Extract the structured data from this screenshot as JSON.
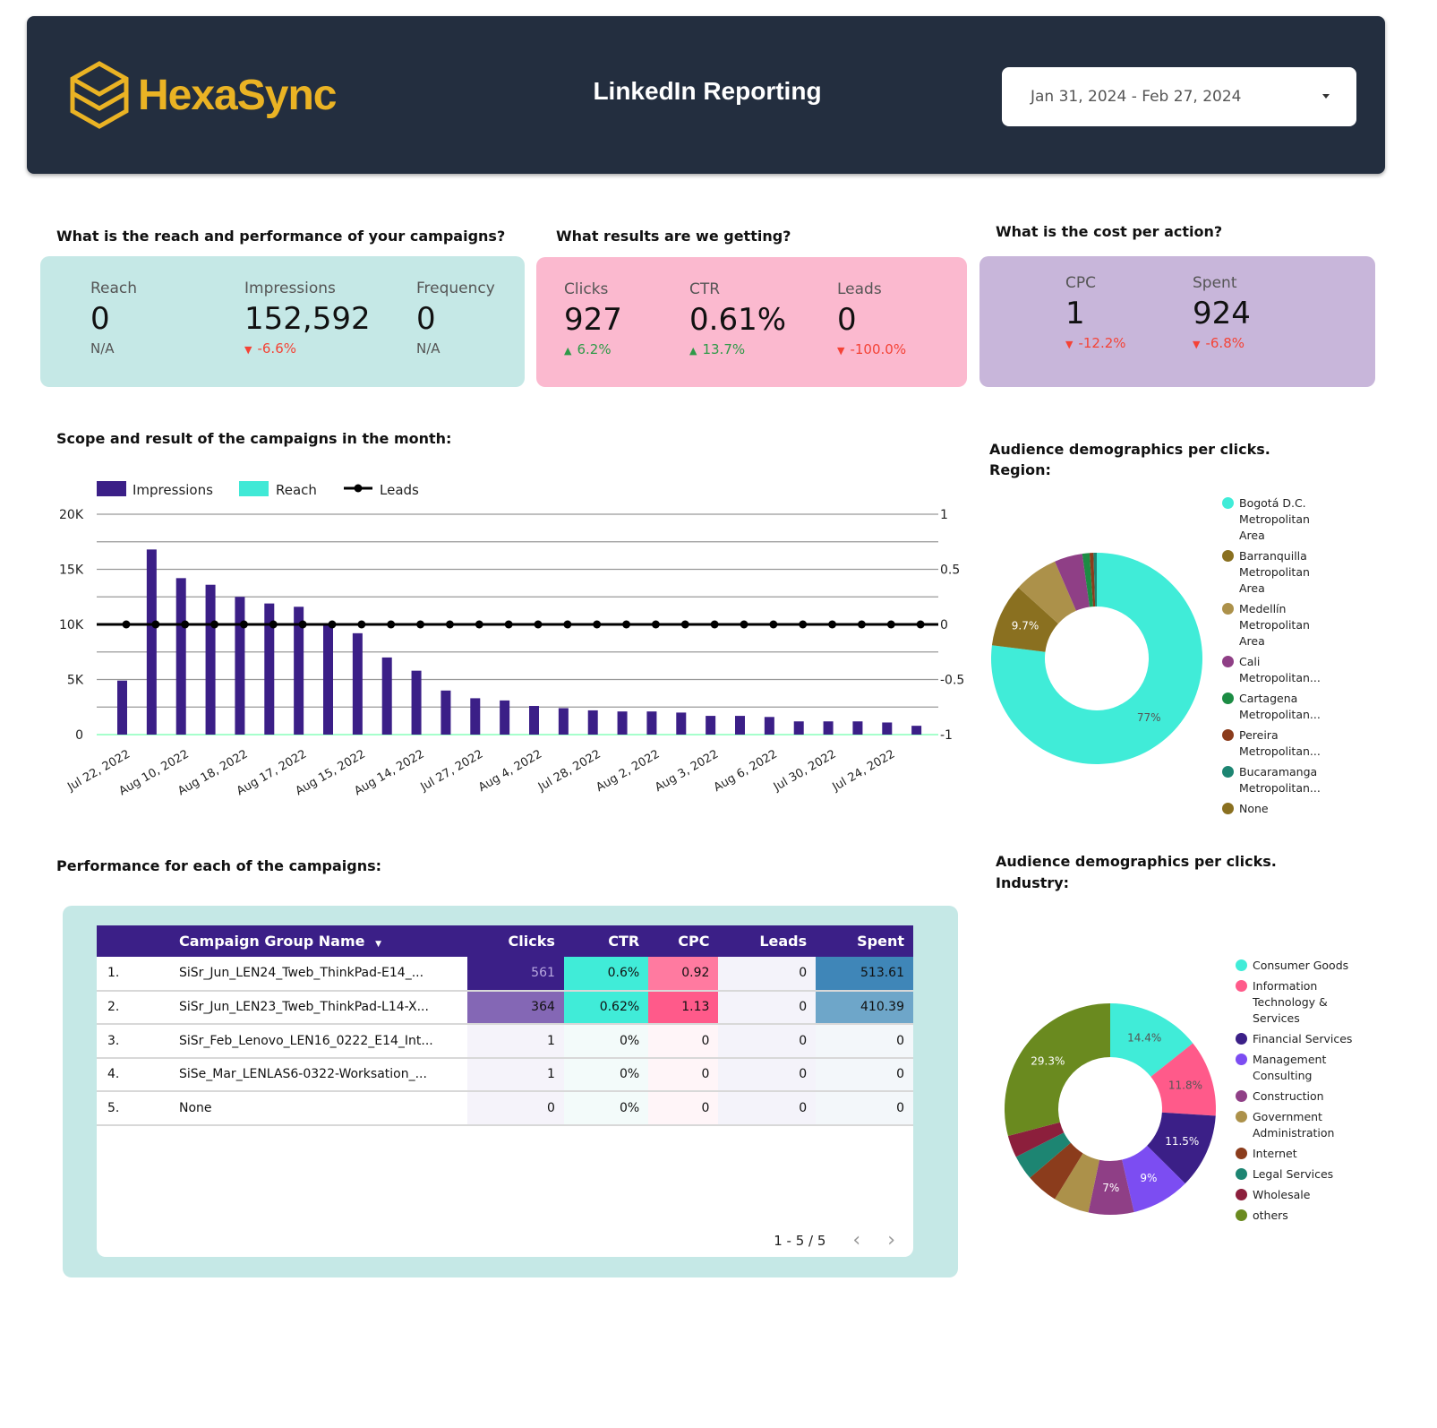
{
  "header": {
    "brand": "HexaSync",
    "title": "LinkedIn Reporting",
    "date_range": "Jan 31, 2024 - Feb 27, 2024",
    "brand_color": "#eab324",
    "bg_color": "#232e3f"
  },
  "sections": {
    "reach_q": "What is the reach and performance of your campaigns?",
    "results_q": "What results are we getting?",
    "cost_q": "What is the cost per action?",
    "scope_q": "Scope and result of the campaigns in the month:",
    "region_q": "Audience demographics per clicks. Region:",
    "performance_q": "Performance for each of the campaigns:",
    "industry_q": "Audience demographics per clicks. Industry:"
  },
  "kpis": {
    "reach": {
      "label": "Reach",
      "value": "0",
      "delta": "N/A",
      "trend": "none"
    },
    "impressions": {
      "label": "Impressions",
      "value": "152,592",
      "delta": "-6.6%",
      "trend": "down"
    },
    "frequency": {
      "label": "Frequency",
      "value": "0",
      "delta": "N/A",
      "trend": "none"
    },
    "clicks": {
      "label": "Clicks",
      "value": "927",
      "delta": "6.2%",
      "trend": "up"
    },
    "ctr": {
      "label": "CTR",
      "value": "0.61%",
      "delta": "13.7%",
      "trend": "up"
    },
    "leads": {
      "label": "Leads",
      "value": "0",
      "delta": "-100.0%",
      "trend": "down"
    },
    "cpc": {
      "label": "CPC",
      "value": "1",
      "delta": "-12.2%",
      "trend": "down"
    },
    "spent": {
      "label": "Spent",
      "value": "924",
      "delta": "-6.8%",
      "trend": "down"
    }
  },
  "icons": {
    "up": "▲",
    "down": "▼"
  },
  "chart_data": [
    {
      "type": "bar",
      "title": "Scope and result of the campaigns in the month:",
      "legend": [
        "Impressions",
        "Reach",
        "Leads"
      ],
      "legend_position": "top-left",
      "colors": {
        "Impressions": "#3b1f87",
        "Reach": "#40e9d6",
        "Leads": "#000000"
      },
      "y_left": {
        "ticks": [
          "0",
          "5K",
          "10K",
          "15K",
          "20K"
        ],
        "range": [
          0,
          20000
        ]
      },
      "y_right": {
        "ticks": [
          "-1",
          "-0.5",
          "0",
          "0.5",
          "1"
        ],
        "range": [
          -1,
          1
        ]
      },
      "x_labels": [
        "Jul 22, 2022",
        "Aug 10, 2022",
        "Aug 18, 2022",
        "Aug 17, 2022",
        "Aug 15, 2022",
        "Aug 14, 2022",
        "Jul 27, 2022",
        "Aug 4, 2022",
        "Jul 28, 2022",
        "Aug 2, 2022",
        "Aug 3, 2022",
        "Aug 6, 2022",
        "Jul 30, 2022",
        "Jul 24, 2022"
      ],
      "series": [
        {
          "name": "Impressions",
          "values": [
            4900,
            16800,
            14200,
            13600,
            12500,
            11900,
            11600,
            10100,
            9200,
            7000,
            5800,
            4000,
            3300,
            3100,
            2600,
            2400,
            2200,
            2100,
            2100,
            2000,
            1700,
            1700,
            1600,
            1200,
            1200,
            1200,
            1100,
            800
          ]
        },
        {
          "name": "Reach",
          "values": [
            0,
            0,
            0,
            0,
            0,
            0,
            0,
            0,
            0,
            0,
            0,
            0,
            0,
            0,
            0,
            0,
            0,
            0,
            0,
            0,
            0,
            0,
            0,
            0,
            0,
            0,
            0,
            0
          ]
        },
        {
          "name": "Leads",
          "values": [
            0,
            0,
            0,
            0,
            0,
            0,
            0,
            0,
            0,
            0,
            0,
            0,
            0,
            0,
            0,
            0,
            0,
            0,
            0,
            0,
            0,
            0,
            0,
            0,
            0,
            0,
            0,
            0
          ]
        }
      ],
      "grid": true
    },
    {
      "type": "pie",
      "title": "Audience demographics per clicks. Region:",
      "slices": [
        {
          "label": "Bogotá D.C. Metropolitan Area",
          "value": 77.0,
          "color": "#40ecd8",
          "shown": "77%"
        },
        {
          "label": "Barranquilla Metropolitan Area",
          "value": 9.7,
          "color": "#8a7020",
          "shown": "9.7%"
        },
        {
          "label": "Medellín Metropolitan Area",
          "value": 6.8,
          "color": "#ac914a",
          "shown": ""
        },
        {
          "label": "Cali Metropolitan...",
          "value": 4.3,
          "color": "#8f3f86",
          "shown": ""
        },
        {
          "label": "Cartagena Metropolitan...",
          "value": 1.1,
          "color": "#1c8c44",
          "shown": ""
        },
        {
          "label": "Pereira Metropolitan...",
          "value": 0.6,
          "color": "#8b3c1c",
          "shown": ""
        },
        {
          "label": "Bucaramanga Metropolitan...",
          "value": 0.5,
          "color": "#1d8572",
          "shown": ""
        },
        {
          "label": "None",
          "value": 0.0,
          "color": "#8a7020",
          "shown": ""
        }
      ],
      "legend_position": "right"
    },
    {
      "type": "pie",
      "title": "Audience demographics per clicks. Industry:",
      "slices": [
        {
          "label": "Consumer Goods",
          "value": 14.4,
          "color": "#40ecd8",
          "shown": "14.4%"
        },
        {
          "label": "Information Technology & Services",
          "value": 11.8,
          "color": "#ff5a8a",
          "shown": "11.8%"
        },
        {
          "label": "Financial Services",
          "value": 11.5,
          "color": "#3b1f87",
          "shown": "11.5%"
        },
        {
          "label": "Management Consulting",
          "value": 9.0,
          "color": "#7c4df2",
          "shown": "9%"
        },
        {
          "label": "Construction",
          "value": 7.0,
          "color": "#8f3f86",
          "shown": "7%"
        },
        {
          "label": "Government Administration",
          "value": 5.5,
          "color": "#ac914a",
          "shown": ""
        },
        {
          "label": "Internet",
          "value": 5.0,
          "color": "#8b3c1c",
          "shown": ""
        },
        {
          "label": "Legal Services",
          "value": 3.8,
          "color": "#1d8572",
          "shown": ""
        },
        {
          "label": "Wholesale",
          "value": 3.4,
          "color": "#8c1f3c",
          "shown": ""
        },
        {
          "label": "others",
          "value": 29.3,
          "color": "#6a8a1f",
          "shown": "29.3%"
        }
      ],
      "legend_position": "right"
    }
  ],
  "table": {
    "columns": [
      "",
      "Campaign Group Name",
      "Clicks",
      "CTR",
      "CPC",
      "Leads",
      "Spent"
    ],
    "sort_icon": "▼",
    "rows": [
      {
        "idx": "1.",
        "name": "SiSr_Jun_LEN24_Tweb_ThinkPad-E14_...",
        "clicks": "561",
        "ctr": "0.6%",
        "cpc": "0.92",
        "leads": "0",
        "spent": "513.61"
      },
      {
        "idx": "2.",
        "name": "SiSr_Jun_LEN23_Tweb_ThinkPad-L14-X...",
        "clicks": "364",
        "ctr": "0.62%",
        "cpc": "1.13",
        "leads": "0",
        "spent": "410.39"
      },
      {
        "idx": "3.",
        "name": "SiSr_Feb_Lenovo_LEN16_0222_E14_Int...",
        "clicks": "1",
        "ctr": "0%",
        "cpc": "0",
        "leads": "0",
        "spent": "0"
      },
      {
        "idx": "4.",
        "name": "SiSe_Mar_LENLAS6-0322-Worksation_...",
        "clicks": "1",
        "ctr": "0%",
        "cpc": "0",
        "leads": "0",
        "spent": "0"
      },
      {
        "idx": "5.",
        "name": "None",
        "clicks": "0",
        "ctr": "0%",
        "cpc": "0",
        "leads": "0",
        "spent": "0"
      }
    ],
    "pagination": "1 - 5 / 5",
    "prev_icon": "‹",
    "next_icon": "›"
  }
}
